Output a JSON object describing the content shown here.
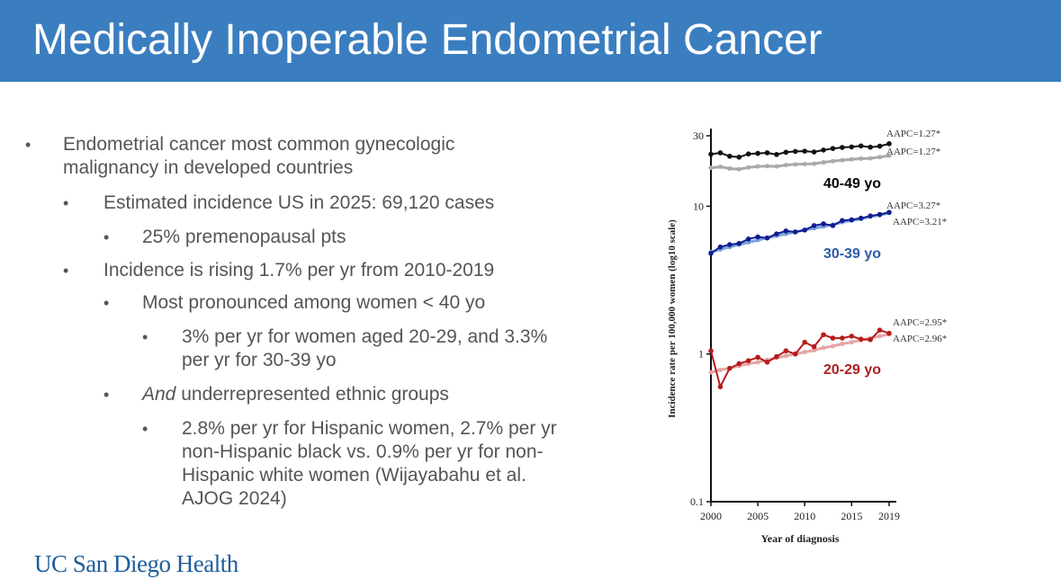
{
  "slide": {
    "title": "Medically Inoperable Endometrial Cancer",
    "logo_text": "UC San Diego Health",
    "colors": {
      "title_bar": "#3b7ec0",
      "bullet_text": "#555555",
      "logo": "#1f5d9b"
    }
  },
  "bullets": {
    "b1": {
      "line1": "Endometrial cancer most common gynecologic",
      "line2": "malignancy in developed countries"
    },
    "b1_1": "Estimated incidence US in 2025: 69,120 cases",
    "b1_1_1": "25% premenopausal pts",
    "b2": "Incidence is rising 1.7% per yr from 2010-2019",
    "b2_1": "Most pronounced among women < 40 yo",
    "b2_1_1": {
      "line1": "3% per yr for women aged 20-29, and 3.3%",
      "line2": "per yr for 30-39 yo"
    },
    "b2_2": {
      "italic": "And",
      "rest": " underrepresented ethnic groups"
    },
    "b2_2_1": {
      "line1": "2.8% per yr for Hispanic women, 2.7% per yr",
      "line2": "non-Hispanic black vs. 0.9% per yr for non-",
      "line3": "Hispanic white women (Wijayabahu et al.",
      "line4": "AJOG 2024)"
    },
    "marker": "•"
  },
  "chart_data": {
    "type": "line",
    "xlabel": "Year of diagnosis",
    "ylabel": "Incidence rate per 100,000 women (log10 scale)",
    "yscale": "log",
    "ylim": [
      0.1,
      30
    ],
    "yticks": [
      {
        "v": 0.1,
        "label": "0.1"
      },
      {
        "v": 1,
        "label": "1"
      },
      {
        "v": 10,
        "label": "10"
      },
      {
        "v": 30,
        "label": "30"
      }
    ],
    "xlim": [
      2000,
      2019
    ],
    "xticks": [
      2000,
      2005,
      2010,
      2015,
      2019
    ],
    "x": [
      2000,
      2001,
      2002,
      2003,
      2004,
      2005,
      2006,
      2007,
      2008,
      2009,
      2010,
      2011,
      2012,
      2013,
      2014,
      2015,
      2016,
      2017,
      2018,
      2019
    ],
    "series": [
      {
        "name": "40-49 yo observed",
        "color": "#111111",
        "values": [
          22.5,
          23.0,
          21.8,
          21.5,
          22.6,
          22.8,
          23.0,
          22.4,
          23.2,
          23.5,
          23.6,
          23.3,
          24.0,
          24.6,
          25.0,
          25.2,
          25.6,
          25.1,
          25.5,
          26.5
        ]
      },
      {
        "name": "40-49 yo fitted",
        "color": "#a9a9a9",
        "values": [
          18.2,
          18.5,
          18.0,
          17.8,
          18.3,
          18.6,
          18.7,
          18.6,
          19.0,
          19.2,
          19.3,
          19.4,
          19.8,
          20.2,
          20.5,
          20.8,
          21.0,
          21.1,
          21.5,
          22.0
        ]
      },
      {
        "name": "30-39 yo observed",
        "color": "#111d8f",
        "values": [
          4.8,
          5.3,
          5.5,
          5.6,
          6.0,
          6.2,
          6.1,
          6.5,
          6.8,
          6.7,
          6.9,
          7.4,
          7.6,
          7.4,
          8.0,
          8.1,
          8.3,
          8.6,
          8.8,
          9.1
        ]
      },
      {
        "name": "30-39 yo fitted",
        "color": "#7aa0d8",
        "values": [
          4.9,
          5.1,
          5.3,
          5.5,
          5.7,
          5.9,
          6.1,
          6.3,
          6.5,
          6.7,
          6.9,
          7.1,
          7.3,
          7.5,
          7.8,
          8.0,
          8.2,
          8.5,
          8.7,
          9.0
        ]
      },
      {
        "name": "20-29 yo observed",
        "color": "#b51c1c",
        "values": [
          1.05,
          0.6,
          0.8,
          0.86,
          0.9,
          0.95,
          0.88,
          0.96,
          1.05,
          1.0,
          1.2,
          1.12,
          1.35,
          1.28,
          1.28,
          1.32,
          1.26,
          1.25,
          1.45,
          1.38
        ]
      },
      {
        "name": "20-29 yo fitted",
        "color": "#e6a5a5",
        "values": [
          0.75,
          0.78,
          0.8,
          0.83,
          0.86,
          0.88,
          0.91,
          0.94,
          0.97,
          1.0,
          1.03,
          1.06,
          1.1,
          1.13,
          1.17,
          1.2,
          1.24,
          1.28,
          1.32,
          1.36
        ]
      }
    ],
    "annotations": {
      "aapc_4049_a": "AAPC=1.27*",
      "aapc_4049_b": "AAPC=1.27*",
      "aapc_3039_a": "AAPC=3.27*",
      "aapc_3039_b": "AAPC=3.21*",
      "aapc_2029_a": "AAPC=2.95*",
      "aapc_2029_b": "AAPC=2.96*"
    },
    "group_labels": {
      "g4049": {
        "text": "40-49 yo",
        "color": "#000000"
      },
      "g3039": {
        "text": "30-39 yo",
        "color": "#2b5ba8"
      },
      "g2029": {
        "text": "20-29 yo",
        "color": "#b01e1e"
      }
    }
  }
}
